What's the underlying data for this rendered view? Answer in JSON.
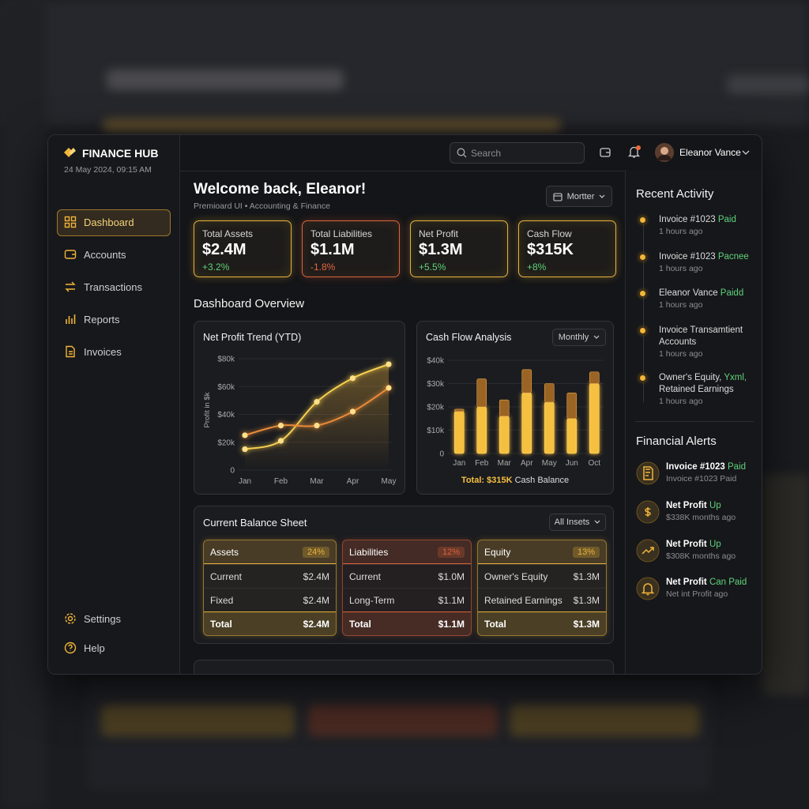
{
  "sidebar": {
    "brand": "FINANCE HUB",
    "datetime": "24 May 2024, 09:15 AM",
    "nav": [
      "Dashboard",
      "Accounts",
      "Transactions",
      "Reports",
      "Invoices"
    ],
    "footer_nav": [
      "Settings",
      "Help"
    ]
  },
  "topbar": {
    "search_placeholder": "Search",
    "user": "Eleanor Vance"
  },
  "header": {
    "title": "Welcome back, Eleanor!",
    "subtitle": "Premioard UI • Accounting & Finance",
    "period": "Mortter"
  },
  "kpis": [
    {
      "label": "Total Assets",
      "value": "$2.4M",
      "change": "+3.2%"
    },
    {
      "label": "Total Liabilities",
      "value": "$1.1M",
      "change": "-1.8%"
    },
    {
      "label": "Net Profit",
      "value": "$1.3M",
      "change": "+5.5%"
    },
    {
      "label": "Cash Flow",
      "value": "$315K",
      "change": "+8%"
    }
  ],
  "overview_title": "Dashboard Overview",
  "chart_data": [
    {
      "type": "line",
      "title": "Net Profit Trend (YTD)",
      "y_label": "Profit in $k",
      "categories": [
        "Jan",
        "Feb",
        "Mar",
        "Apr",
        "May"
      ],
      "series": [
        {
          "color": "#f7cf4f",
          "values": [
            15,
            21,
            49,
            66,
            76
          ]
        },
        {
          "color": "#e98b3a",
          "values": [
            25,
            32,
            32,
            42,
            59
          ]
        }
      ],
      "ylim": [
        0,
        80
      ],
      "yticks": [
        0,
        {
          "value": 20,
          "label": "$20k"
        },
        {
          "value": 40,
          "label": "$40k"
        },
        {
          "value": 60,
          "label": "$60k"
        },
        {
          "value": 80,
          "label": "$80k"
        }
      ]
    },
    {
      "type": "bar",
      "stacked": true,
      "title": "Cash Flow Analysis",
      "period": "Monthly",
      "categories": [
        "Jan",
        "Feb",
        "Mar",
        "Apr",
        "May",
        "Jun",
        "Oct"
      ],
      "series": [
        {
          "color": "#f5c040",
          "values": [
            18,
            20,
            16,
            26,
            22,
            15,
            30
          ]
        },
        {
          "color": "#9a6424",
          "values": [
            1,
            12,
            7,
            10,
            8,
            11,
            5
          ]
        }
      ],
      "ylim": [
        0,
        40
      ],
      "yticks": [
        0,
        {
          "value": 10,
          "label": "$10k"
        },
        {
          "value": 20,
          "label": "$20k"
        },
        {
          "value": 30,
          "label": "$30k"
        },
        {
          "value": 40,
          "label": "$40k"
        }
      ],
      "footer_total": "Total: $315K",
      "footer_note": "Cash Balance"
    }
  ],
  "balance_sheet": {
    "title": "Current Balance Sheet",
    "filter": "All Insets",
    "columns": [
      {
        "name": "Assets",
        "share": "24%",
        "rows": [
          [
            "Current",
            "$2.4M"
          ],
          [
            "Fixed",
            "$2.4M"
          ]
        ],
        "total": [
          "Total",
          "$2.4M"
        ]
      },
      {
        "name": "Liabilities",
        "share": "12%",
        "rows": [
          [
            "Current",
            "$1.0M"
          ],
          [
            "Long-Term",
            "$1.1M"
          ]
        ],
        "total": [
          "Total",
          "$1.1M"
        ]
      },
      {
        "name": "Equity",
        "share": "13%",
        "rows": [
          [
            "Owner's Equity",
            "$1.3M"
          ],
          [
            "Retained Earnings",
            "$1.3M"
          ]
        ],
        "total": [
          "Total",
          "$1.3M"
        ]
      }
    ]
  },
  "recent_activity": {
    "title": "Recent Activity",
    "items": [
      {
        "text": "Invoice #1023",
        "status": "Paid",
        "time": "1 hours ago"
      },
      {
        "text": "Invoice #1023",
        "status": "Pacnee",
        "time": "1 hours ago"
      },
      {
        "text": "Eleanor Vance",
        "status": "Paidd",
        "time": "1 hours ago"
      },
      {
        "text": "Invoice Transamtient",
        "extra": "Accounts",
        "time": "1 hours ago"
      },
      {
        "text": "Owner's Equity,",
        "status": "Yxml,",
        "extra": "Retained Earnings",
        "time": "1 hours ago"
      }
    ]
  },
  "financial_alerts": {
    "title": "Financial Alerts",
    "items": [
      {
        "title": "Invoice #1023",
        "status": "Paid",
        "sub": "Invoice #1023 Paid"
      },
      {
        "title": "Net Profit",
        "status": "Up",
        "sub": "$338K months ago"
      },
      {
        "title": "Net Profit",
        "status": "Up",
        "sub": "$308K months ago"
      },
      {
        "title": "Net Profit",
        "status": "Can Paid",
        "sub": "Net int Profit ago"
      }
    ]
  }
}
